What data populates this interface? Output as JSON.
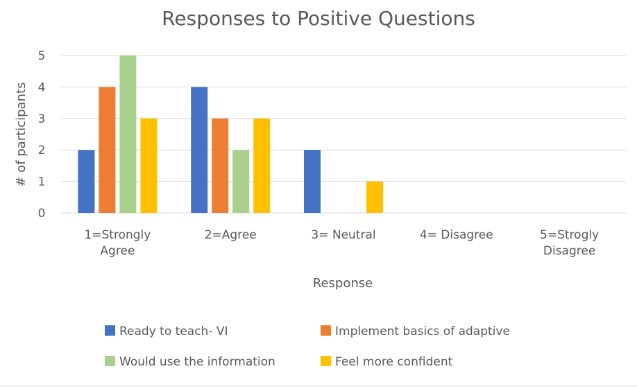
{
  "chart_data": {
    "type": "bar",
    "title": "Responses to Positive Questions",
    "xlabel": "Response",
    "ylabel": "# of participants",
    "categories": [
      [
        "1=Strongly",
        "Agree"
      ],
      [
        "2=Agree"
      ],
      [
        "3= Neutral"
      ],
      [
        "4= Disagree"
      ],
      [
        "5=Strogly",
        "Disagree"
      ]
    ],
    "ylim": [
      0,
      5
    ],
    "yticks": [
      0,
      1,
      2,
      3,
      4,
      5
    ],
    "grid": true,
    "legend_position": "bottom",
    "series": [
      {
        "name": "Ready to teach- VI",
        "color": "#4472C4",
        "values": [
          2,
          4,
          2,
          0,
          0
        ]
      },
      {
        "name": "Implement basics of adaptive",
        "color": "#ED7D31",
        "values": [
          4,
          3,
          0,
          0,
          0
        ]
      },
      {
        "name": "Would use the information",
        "color": "#A9D18E",
        "values": [
          5,
          2,
          0,
          0,
          0
        ]
      },
      {
        "name": "Feel more confident",
        "color": "#FFC000",
        "values": [
          3,
          3,
          1,
          0,
          0
        ]
      }
    ]
  }
}
